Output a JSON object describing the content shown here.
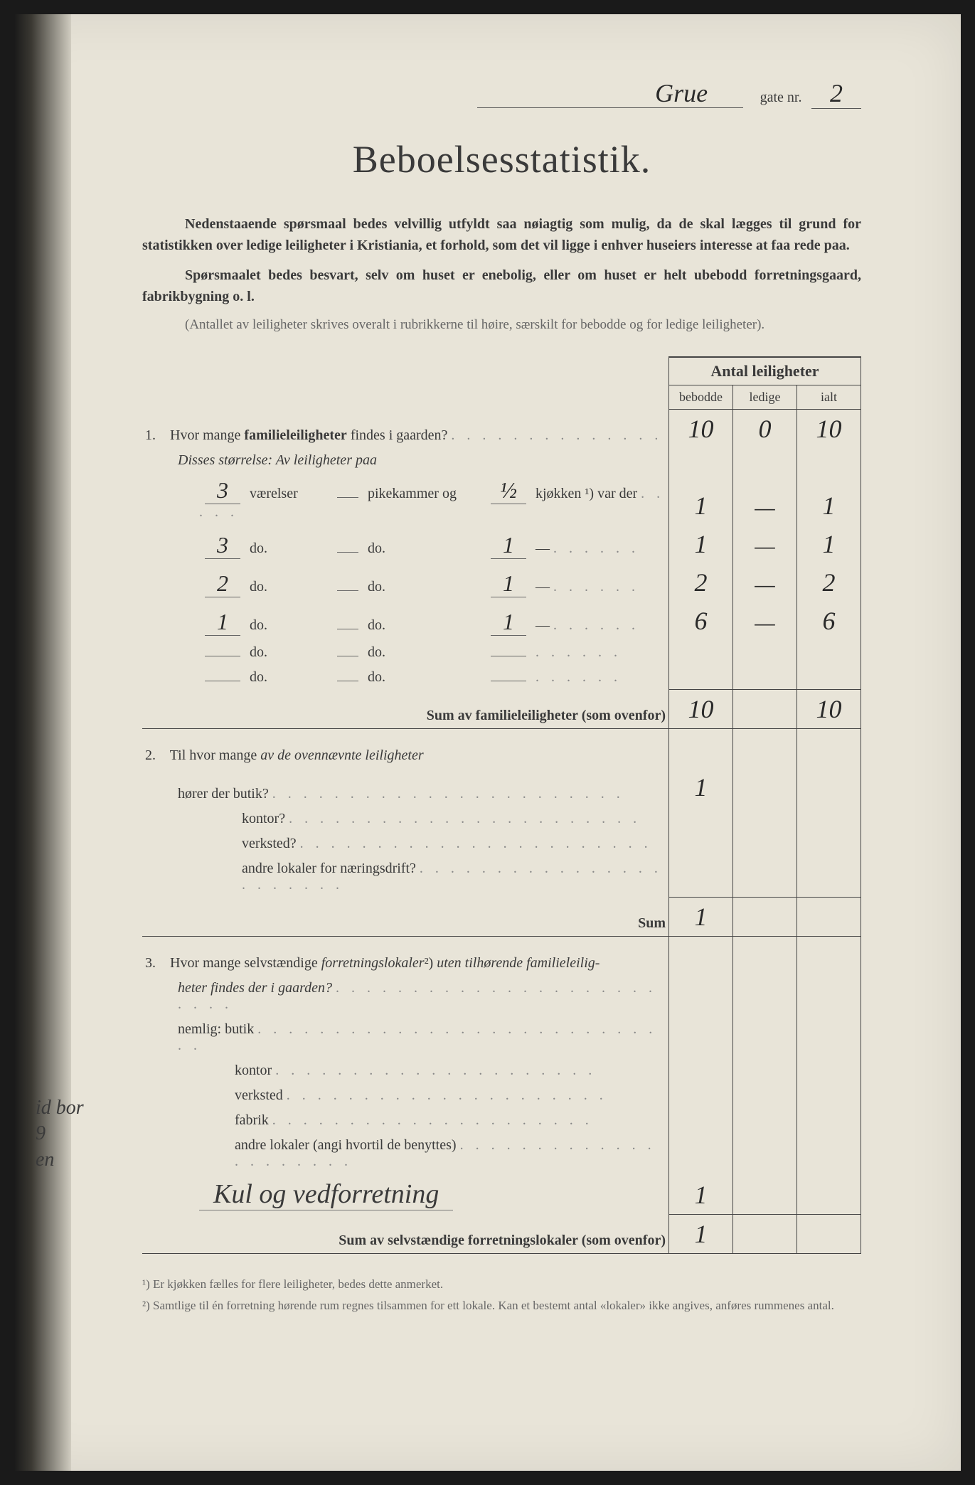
{
  "header": {
    "street_name": "Grue",
    "gate_label": "gate nr.",
    "gate_nr": "2"
  },
  "title": "Beboelsesstatistik.",
  "intro1": "Nedenstaaende spørsmaal bedes velvillig utfyldt saa nøiagtig som mulig, da de skal lægges til grund for statistikken over ledige leiligheter i Kristiania, et forhold, som det vil ligge i enhver huseiers interesse at faa rede paa.",
  "intro2": "Spørsmaalet bedes besvart, selv om huset er enebolig, eller om huset er helt ubebodd forretningsgaard, fabrikbygning o. l.",
  "note": "(Antallet av leiligheter skrives overalt i rubrikkerne til høire, særskilt for bebodde og for ledige leiligheter).",
  "table_header": {
    "group": "Antal leiligheter",
    "col1": "bebodde",
    "col2": "ledige",
    "col3": "ialt"
  },
  "q1": {
    "num": "1.",
    "text": "Hvor mange familieleiligheter findes i gaarden?",
    "bebodde": "10",
    "ledige": "0",
    "ialt": "10",
    "sub_label": "Disses størrelse: Av leiligheter paa",
    "rows": [
      {
        "vaer": "3",
        "lbl1": "værelser",
        "lbl2": "pikekammer og",
        "pike": "½",
        "lbl3": "kjøkken ¹) var der",
        "b": "1",
        "l": "—",
        "i": "1"
      },
      {
        "vaer": "3",
        "lbl1": "do.",
        "lbl2": "do.",
        "pike": "1",
        "lbl3": "—",
        "b": "1",
        "l": "—",
        "i": "1"
      },
      {
        "vaer": "2",
        "lbl1": "do.",
        "lbl2": "do.",
        "pike": "1",
        "lbl3": "—",
        "b": "2",
        "l": "—",
        "i": "2"
      },
      {
        "vaer": "1",
        "lbl1": "do.",
        "lbl2": "do.",
        "pike": "1",
        "lbl3": "—",
        "b": "6",
        "l": "—",
        "i": "6"
      },
      {
        "vaer": "",
        "lbl1": "do.",
        "lbl2": "do.",
        "pike": "",
        "lbl3": "",
        "b": "",
        "l": "",
        "i": ""
      },
      {
        "vaer": "",
        "lbl1": "do.",
        "lbl2": "do.",
        "pike": "",
        "lbl3": "",
        "b": "",
        "l": "",
        "i": ""
      }
    ],
    "sum_label": "Sum av familieleiligheter (som ovenfor)",
    "sum_b": "10",
    "sum_i": "10"
  },
  "q2": {
    "num": "2.",
    "text": "Til hvor mange av de ovennævnte leiligheter",
    "rows": [
      {
        "label": "hører der butik?",
        "b": "1"
      },
      {
        "label": "kontor?",
        "b": ""
      },
      {
        "label": "verksted?",
        "b": ""
      },
      {
        "label": "andre lokaler for næringsdrift?",
        "b": ""
      }
    ],
    "sum_label": "Sum",
    "sum_b": "1"
  },
  "q3": {
    "num": "3.",
    "text1": "Hvor mange selvstændige forretningslokaler²) uten tilhørende familieleilig-",
    "text2": "heter findes der i gaarden?",
    "nemlig": "nemlig:",
    "rows": [
      {
        "label": "butik",
        "b": ""
      },
      {
        "label": "kontor",
        "b": ""
      },
      {
        "label": "verksted",
        "b": ""
      },
      {
        "label": "fabrik",
        "b": ""
      },
      {
        "label": "andre lokaler (angi hvortil de benyttes)",
        "b": ""
      }
    ],
    "handwritten": "Kul og vedforretning",
    "hand_b": "1",
    "sum_label": "Sum av selvstændige forretningslokaler (som ovenfor)",
    "sum_b": "1"
  },
  "footnotes": {
    "f1": "¹) Er kjøkken fælles for flere leiligheter, bedes dette anmerket.",
    "f2": "²) Samtlige til én forretning hørende rum regnes tilsammen for ett lokale. Kan et bestemt antal «lokaler» ikke angives, anføres rummenes antal."
  },
  "margin": {
    "l1": "id bor",
    "l2": "9",
    "l3": "en"
  }
}
